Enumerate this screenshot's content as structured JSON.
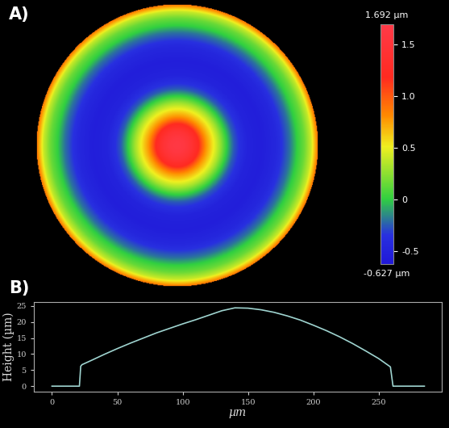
{
  "chart_data": [
    {
      "type": "heatmap",
      "panel_label": "A)",
      "radial_profile": {
        "r": [
          0,
          0.05,
          0.1,
          0.15,
          0.2,
          0.25,
          0.3,
          0.35,
          0.4,
          0.5,
          0.6,
          0.7,
          0.8,
          0.85,
          0.9,
          0.95,
          1.0
        ],
        "values": [
          1.65,
          1.6,
          1.45,
          1.2,
          0.8,
          0.55,
          0.3,
          0.0,
          -0.25,
          -0.5,
          -0.55,
          -0.45,
          -0.2,
          0.0,
          0.15,
          0.4,
          0.9
        ]
      },
      "colorbar_range": [
        -0.627,
        1.692
      ],
      "colorbar_ticks": [
        -0.5,
        0,
        0.5,
        {
          "value": 1,
          "label": "1.0"
        },
        1.5
      ],
      "colorbar_range_labels": [
        "-0.627 µm",
        "1.692 µm"
      ],
      "tick_labels": false
    },
    {
      "type": "line",
      "panel_label": "B)",
      "x": [
        0,
        21,
        22,
        23,
        30,
        40,
        50,
        60,
        70,
        80,
        90,
        100,
        110,
        120,
        130,
        140,
        150,
        160,
        170,
        180,
        190,
        200,
        210,
        220,
        230,
        240,
        250,
        258,
        259,
        261,
        270,
        285
      ],
      "values": [
        0,
        0,
        6.2,
        6.7,
        8.0,
        9.9,
        11.7,
        13.4,
        15.0,
        16.6,
        18.0,
        19.4,
        20.7,
        22.1,
        23.5,
        24.4,
        24.3,
        23.8,
        23.0,
        21.9,
        20.6,
        19.0,
        17.3,
        15.4,
        13.3,
        11.0,
        8.6,
        6.3,
        6.0,
        0,
        0,
        0
      ],
      "xlabel": "µm",
      "ylabel": "Height (µm)",
      "xlim": [
        -14,
        298
      ],
      "ylim": [
        -1.7,
        26.3
      ],
      "xticks": [
        0,
        50,
        100,
        150,
        200,
        250
      ],
      "yticks": [
        0,
        5,
        10,
        15,
        20,
        25
      ],
      "color": "#9fd4d0"
    }
  ]
}
